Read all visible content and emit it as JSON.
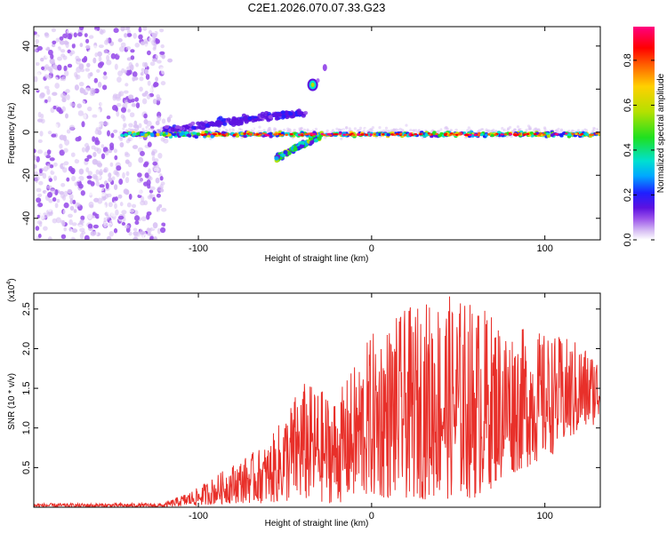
{
  "title": "C2E1.2026.070.07.33.G23",
  "colors": {
    "line": "#e8302a",
    "axis": "#000000",
    "colormap": [
      "#ffffff",
      "#d9c2f4",
      "#9a52ea",
      "#5d12e0",
      "#1f1fff",
      "#00a8ff",
      "#00e0d0",
      "#1fe01f",
      "#b4e000",
      "#ffd000",
      "#ff6000",
      "#ff0000",
      "#ff0080"
    ]
  },
  "chart_data": [
    {
      "type": "heatmap",
      "title": "C2E1.2026.070.07.33.G23",
      "xlabel": "Height of straight line (km)",
      "ylabel": "Frequency (Hz)",
      "xlim": [
        -195,
        132
      ],
      "ylim": [
        -50,
        49
      ],
      "xticks": [
        -100,
        0,
        100
      ],
      "xtick_labels": [
        "-100",
        "0",
        "100"
      ],
      "yticks": [
        -40,
        -20,
        0,
        20,
        40
      ],
      "ytick_labels": [
        "-40",
        "-20",
        "0",
        "20",
        "40"
      ],
      "colorbar": {
        "label": "Normalized spectral amplitude",
        "range": [
          0.0,
          0.95
        ],
        "ticks": [
          0.0,
          0.2,
          0.4,
          0.6,
          0.8
        ],
        "tick_labels": [
          "0.0",
          "0.2",
          "0.4",
          "0.6",
          "0.8"
        ]
      },
      "features": [
        {
          "name": "noise-region",
          "x_range": [
            -195,
            -120
          ],
          "freq_range": [
            -50,
            49
          ],
          "amplitude": 0.1
        },
        {
          "name": "main-ridge",
          "x_range": [
            -145,
            132
          ],
          "freq_center": 0,
          "amplitude": 0.55
        },
        {
          "name": "upper-ridge",
          "x_range": [
            -120,
            -38
          ],
          "freq_range": [
            0,
            12
          ],
          "amplitude": 0.3
        },
        {
          "name": "lower-dip",
          "x_range": [
            -55,
            -30
          ],
          "freq_range": [
            -12,
            -2
          ],
          "amplitude": 0.45
        },
        {
          "name": "blob-1",
          "x": -34,
          "freq": 22,
          "amplitude": 0.5
        },
        {
          "name": "blob-2",
          "x": -27,
          "freq": 30,
          "amplitude": 0.15
        }
      ]
    },
    {
      "type": "line",
      "xlabel": "Height of straight line (km)",
      "ylabel": "SNR (10 * v/v)",
      "scale_label": "(x10",
      "scale_exp": "4",
      "xlim": [
        -195,
        132
      ],
      "ylim": [
        0.0,
        2.7
      ],
      "xticks": [
        -100,
        0,
        100
      ],
      "xtick_labels": [
        "-100",
        "0",
        "100"
      ],
      "yticks": [
        0.5,
        1.0,
        1.5,
        2.0,
        2.5
      ],
      "ytick_labels": [
        "0.5",
        "1.0",
        "1.5",
        "2.0",
        "2.5"
      ],
      "series": [
        {
          "name": "SNR",
          "envelope": [
            {
              "x": -195,
              "low": 0.0,
              "high": 0.05
            },
            {
              "x": -120,
              "low": 0.0,
              "high": 0.05
            },
            {
              "x": -100,
              "low": 0.02,
              "high": 0.25
            },
            {
              "x": -80,
              "low": 0.05,
              "high": 0.55
            },
            {
              "x": -60,
              "low": 0.05,
              "high": 0.8
            },
            {
              "x": -40,
              "low": 0.05,
              "high": 1.6
            },
            {
              "x": -20,
              "low": 0.05,
              "high": 1.4
            },
            {
              "x": 0,
              "low": 0.1,
              "high": 2.2
            },
            {
              "x": 20,
              "low": 0.1,
              "high": 2.5
            },
            {
              "x": 40,
              "low": 0.1,
              "high": 2.7
            },
            {
              "x": 60,
              "low": 0.1,
              "high": 2.6
            },
            {
              "x": 80,
              "low": 0.4,
              "high": 2.3
            },
            {
              "x": 100,
              "low": 0.6,
              "high": 2.2
            },
            {
              "x": 120,
              "low": 0.9,
              "high": 2.1
            },
            {
              "x": 132,
              "low": 1.1,
              "high": 1.9
            }
          ]
        }
      ]
    }
  ]
}
